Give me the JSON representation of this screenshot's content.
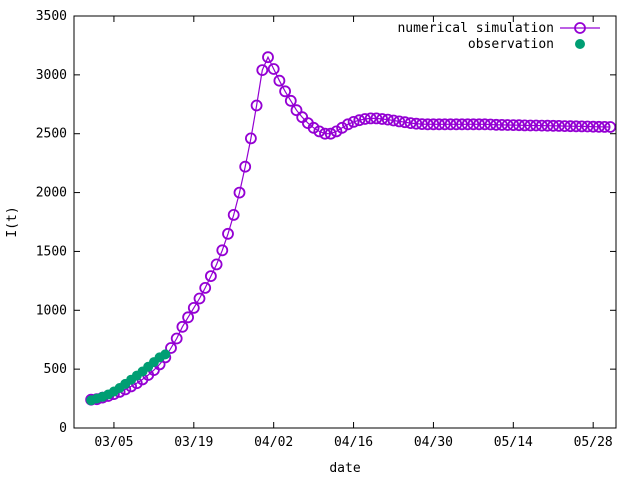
{
  "chart_data": {
    "type": "scatter",
    "title": "",
    "xlabel": "date",
    "ylabel": "I(t)",
    "x_type": "date",
    "year": "2020",
    "xlim": [
      "2020-02-27",
      "2020-06-01"
    ],
    "ylim": [
      0,
      3500
    ],
    "x_ticks": [
      {
        "date": "2020-03-05",
        "label": "03/05"
      },
      {
        "date": "2020-03-19",
        "label": "03/19"
      },
      {
        "date": "2020-04-02",
        "label": "04/02"
      },
      {
        "date": "2020-04-16",
        "label": "04/16"
      },
      {
        "date": "2020-04-30",
        "label": "04/30"
      },
      {
        "date": "2020-05-14",
        "label": "05/14"
      },
      {
        "date": "2020-05-28",
        "label": "05/28"
      }
    ],
    "y_ticks": [
      0,
      500,
      1000,
      1500,
      2000,
      2500,
      3000,
      3500
    ],
    "legend_position": "top-right",
    "series": [
      {
        "name": "numerical simulation",
        "color": "#9400d3",
        "marker": "open-circle",
        "line": true,
        "x_start": "2020-03-01",
        "x_step_days": 1,
        "values": [
          240,
          245,
          258,
          272,
          288,
          307,
          328,
          353,
          381,
          413,
          450,
          492,
          540,
          600,
          680,
          760,
          860,
          940,
          1020,
          1100,
          1190,
          1290,
          1390,
          1510,
          1650,
          1810,
          2000,
          2220,
          2460,
          2740,
          3040,
          3150,
          3050,
          2950,
          2860,
          2780,
          2700,
          2640,
          2590,
          2550,
          2520,
          2500,
          2500,
          2520,
          2550,
          2580,
          2600,
          2615,
          2625,
          2630,
          2630,
          2625,
          2620,
          2612,
          2605,
          2598,
          2590,
          2585,
          2582,
          2580,
          2580,
          2580,
          2580,
          2580,
          2580,
          2580,
          2580,
          2580,
          2580,
          2580,
          2578,
          2576,
          2575,
          2574,
          2573,
          2572,
          2571,
          2570,
          2570,
          2569,
          2568,
          2567,
          2566,
          2565,
          2564,
          2563,
          2562,
          2561,
          2560,
          2559,
          2558,
          2557
        ]
      },
      {
        "name": "observation",
        "color": "#009e73",
        "marker": "filled-circle",
        "line": false,
        "x_start": "2020-03-01",
        "x_step_days": 1,
        "values": [
          235,
          250,
          265,
          285,
          310,
          340,
          375,
          410,
          445,
          480,
          520,
          560,
          600,
          625
        ]
      }
    ]
  }
}
